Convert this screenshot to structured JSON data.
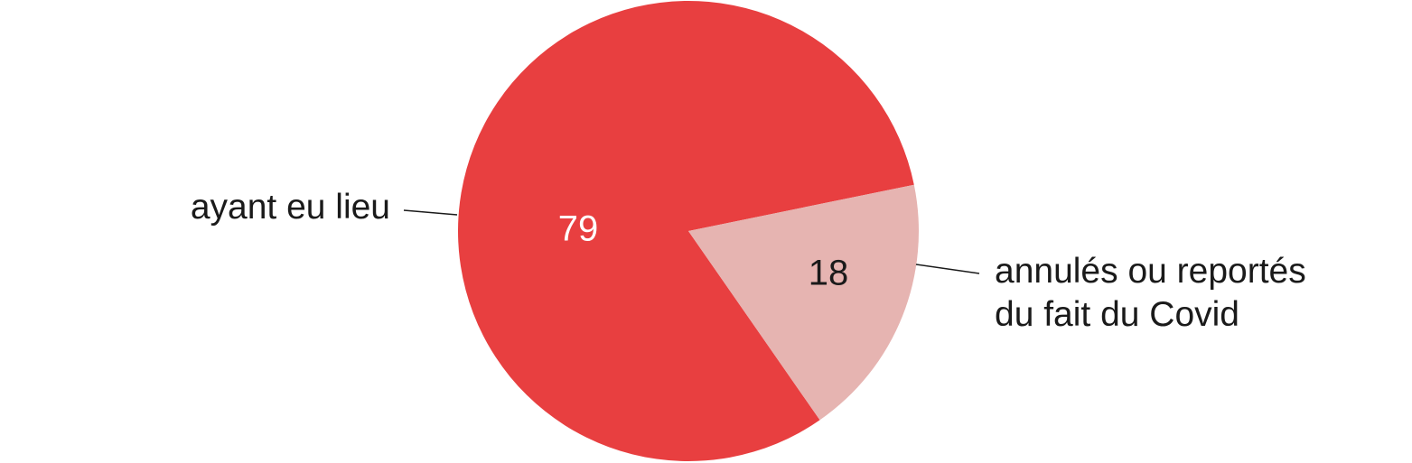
{
  "chart_data": {
    "type": "pie",
    "title": "",
    "slices": [
      {
        "label_lines": [
          "ayant eu lieu"
        ],
        "value": 79,
        "value_label": "79",
        "color": "#e83f40",
        "value_text_color": "#ffffff"
      },
      {
        "label_lines": [
          "annulés ou reportés",
          "du fait du Covid"
        ],
        "value": 18,
        "value_label": "18",
        "color": "#e6b4b1",
        "value_text_color": "#1a1a1a"
      }
    ],
    "legend": "none",
    "labels_placement": "outside-with-leader-lines"
  }
}
